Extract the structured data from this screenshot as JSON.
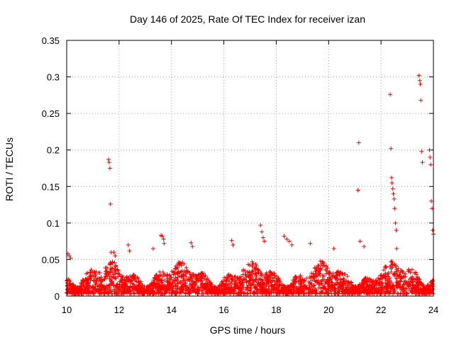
{
  "chart_data": {
    "type": "scatter",
    "title": "Day 146 of 2025, Rate Of TEC Index for receiver izan",
    "xlabel": "GPS time / hours",
    "ylabel": "ROTI / TECUs",
    "xlim": [
      10,
      24
    ],
    "ylim": [
      0,
      0.35
    ],
    "xticks": [
      10,
      12,
      14,
      16,
      18,
      20,
      22,
      24
    ],
    "xtick_labels": [
      "10",
      "12",
      "14",
      "16",
      "18",
      "20",
      "22",
      "24"
    ],
    "yticks": [
      0,
      0.05,
      0.1,
      0.15,
      0.2,
      0.25,
      0.3,
      0.35
    ],
    "ytick_labels": [
      "0",
      "0.05",
      "0.1",
      "0.15",
      "0.2",
      "0.25",
      "0.3",
      "0.35"
    ],
    "grid": true,
    "marker": "+",
    "color": "#ff0000",
    "baseline_band": {
      "description": "dense cluster of ROTI values",
      "typical_range": [
        0.0,
        0.05
      ]
    },
    "series": [
      {
        "name": "ROTI",
        "x": [
          10.05,
          10.1,
          10.15,
          11.6,
          11.62,
          11.65,
          11.67,
          11.7,
          11.8,
          11.85,
          12.35,
          12.4,
          13.3,
          13.6,
          13.65,
          13.7,
          13.72,
          14.75,
          14.8,
          16.3,
          16.35,
          17.4,
          17.45,
          17.5,
          17.55,
          18.3,
          18.4,
          18.5,
          18.6,
          19.3,
          20.2,
          21.12,
          21.15,
          21.2,
          21.35,
          22.35,
          22.38,
          22.4,
          22.42,
          22.45,
          22.47,
          22.5,
          22.52,
          22.55,
          22.58,
          22.6,
          23.45,
          23.48,
          23.5,
          23.52,
          23.55,
          23.58,
          23.85,
          23.87,
          23.9,
          23.92,
          23.95,
          23.97,
          24.0
        ],
        "y": [
          0.058,
          0.055,
          0.052,
          0.187,
          0.183,
          0.175,
          0.126,
          0.06,
          0.06,
          0.055,
          0.07,
          0.062,
          0.065,
          0.083,
          0.082,
          0.078,
          0.072,
          0.073,
          0.068,
          0.076,
          0.07,
          0.097,
          0.088,
          0.08,
          0.075,
          0.082,
          0.078,
          0.075,
          0.07,
          0.072,
          0.065,
          0.145,
          0.21,
          0.075,
          0.068,
          0.276,
          0.202,
          0.162,
          0.155,
          0.147,
          0.14,
          0.133,
          0.12,
          0.1,
          0.09,
          0.065,
          0.302,
          0.295,
          0.29,
          0.268,
          0.198,
          0.183,
          0.2,
          0.19,
          0.18,
          0.13,
          0.12,
          0.09,
          0.085
        ]
      }
    ]
  }
}
